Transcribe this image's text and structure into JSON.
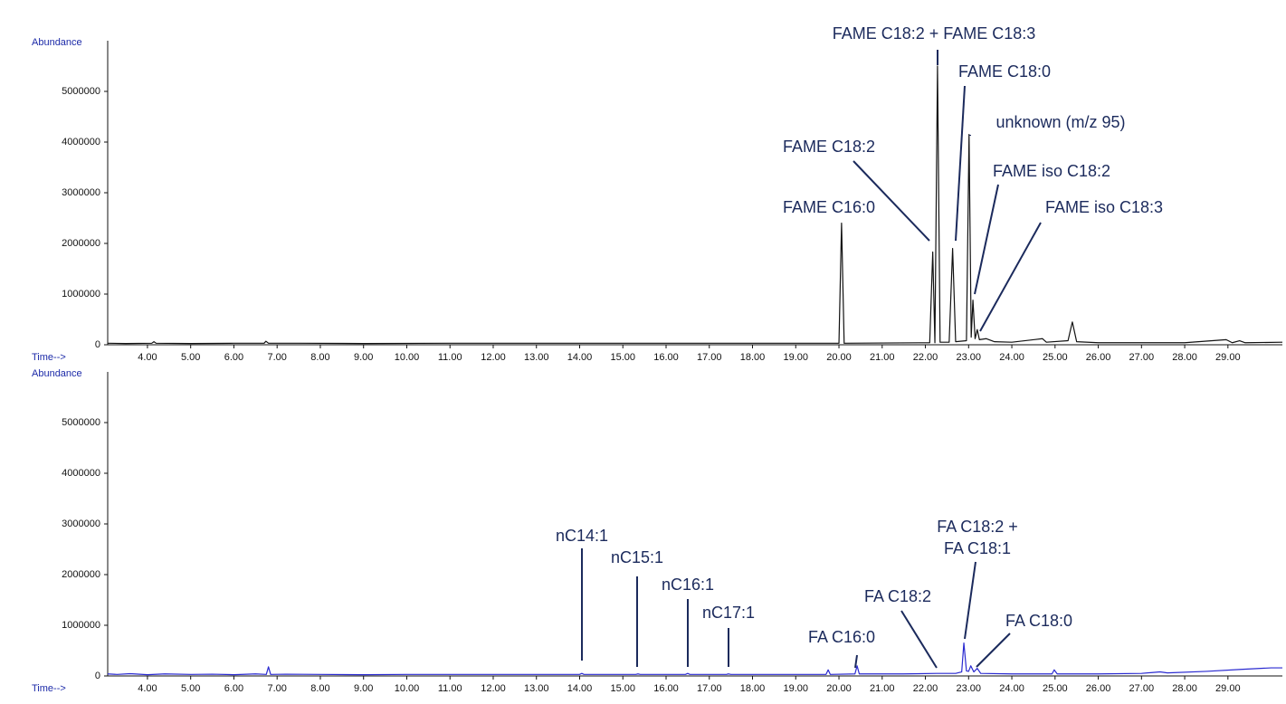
{
  "chart_data": [
    {
      "type": "line",
      "y_label": "Abundance",
      "x_label": "Time-->",
      "color": "#111111",
      "xlim": [
        3.08,
        30.26
      ],
      "ylim": [
        0,
        6000000
      ],
      "yticks": [
        0,
        1000000,
        2000000,
        3000000,
        4000000,
        5000000
      ],
      "xticks": [
        {
          "value": 4,
          "label": "4.00"
        },
        {
          "value": 5,
          "label": "5.00"
        },
        {
          "value": 6,
          "label": "6.00"
        },
        {
          "value": 7,
          "label": "7.00"
        },
        {
          "value": 8,
          "label": "8.00"
        },
        {
          "value": 9,
          "label": "9.00"
        },
        {
          "value": 10,
          "label": "10.00"
        },
        {
          "value": 11,
          "label": "11.00"
        },
        {
          "value": 12,
          "label": "12.00"
        },
        {
          "value": 13,
          "label": "13.00"
        },
        {
          "value": 14,
          "label": "14.00"
        },
        {
          "value": 15,
          "label": "15.00"
        },
        {
          "value": 16,
          "label": "16.00"
        },
        {
          "value": 17,
          "label": "17.00"
        },
        {
          "value": 18,
          "label": "18.00"
        },
        {
          "value": 19,
          "label": "19.00"
        },
        {
          "value": 20,
          "label": "20.00"
        },
        {
          "value": 21,
          "label": "21.00"
        },
        {
          "value": 22,
          "label": "22.00"
        },
        {
          "value": 23,
          "label": "23.00"
        },
        {
          "value": 24,
          "label": "24.00"
        },
        {
          "value": 25,
          "label": "25.00"
        },
        {
          "value": 26,
          "label": "26.00"
        },
        {
          "value": 27,
          "label": "27.00"
        },
        {
          "value": 28,
          "label": "28.00"
        },
        {
          "value": 29,
          "label": "29.00"
        }
      ],
      "x": [
        3.08,
        3.5,
        4.1,
        4.15,
        4.2,
        5.0,
        6.0,
        6.7,
        6.74,
        6.8,
        7.5,
        9,
        11,
        13,
        15,
        17,
        19,
        20.0,
        20.06,
        20.12,
        21,
        22.1,
        22.17,
        22.22,
        22.28,
        22.34,
        22.55,
        22.63,
        22.7,
        22.95,
        23.01,
        23.06,
        23.1,
        23.15,
        23.2,
        23.25,
        23.41,
        23.6,
        24.0,
        24.71,
        24.8,
        25.3,
        25.4,
        25.5,
        26,
        27,
        28,
        28.96,
        29.1,
        29.27,
        29.4,
        30.26
      ],
      "values": [
        30000,
        25000,
        30000,
        60000,
        30000,
        25000,
        30000,
        30000,
        70000,
        30000,
        30000,
        25000,
        30000,
        30000,
        30000,
        30000,
        30000,
        30000,
        2400000,
        30000,
        35000,
        40000,
        1830000,
        40000,
        5500000,
        50000,
        50000,
        1900000,
        60000,
        80000,
        4150000,
        150000,
        880000,
        120000,
        300000,
        100000,
        120000,
        60000,
        50000,
        120000,
        50000,
        80000,
        450000,
        60000,
        40000,
        40000,
        40000,
        100000,
        40000,
        80000,
        40000,
        50000
      ],
      "annotations": [
        "FAME C18:2 + FAME C18:3",
        "FAME C18:0",
        "FAME C18:2",
        "unknown (m/z 95)",
        "FAME iso C18:2",
        "FAME C16:0",
        "FAME iso C18:3"
      ]
    },
    {
      "type": "line",
      "y_label": "Abundance",
      "x_label": "Time-->",
      "color": "#2a2ad0",
      "xlim": [
        3.08,
        30.26
      ],
      "ylim": [
        0,
        6000000
      ],
      "yticks": [
        0,
        1000000,
        2000000,
        3000000,
        4000000,
        5000000
      ],
      "xticks": [
        {
          "value": 4,
          "label": "4.00"
        },
        {
          "value": 5,
          "label": "5.00"
        },
        {
          "value": 6,
          "label": "6.00"
        },
        {
          "value": 7,
          "label": "7.00"
        },
        {
          "value": 8,
          "label": "8.00"
        },
        {
          "value": 9,
          "label": "9.00"
        },
        {
          "value": 10,
          "label": "10.00"
        },
        {
          "value": 11,
          "label": "11.00"
        },
        {
          "value": 12,
          "label": "12.00"
        },
        {
          "value": 13,
          "label": "13.00"
        },
        {
          "value": 14,
          "label": "14.00"
        },
        {
          "value": 15,
          "label": "15.00"
        },
        {
          "value": 16,
          "label": "16.00"
        },
        {
          "value": 17,
          "label": "17.00"
        },
        {
          "value": 18,
          "label": "18.00"
        },
        {
          "value": 19,
          "label": "19.00"
        },
        {
          "value": 20,
          "label": "20.00"
        },
        {
          "value": 21,
          "label": "21.00"
        },
        {
          "value": 22,
          "label": "22.00"
        },
        {
          "value": 23,
          "label": "23.00"
        },
        {
          "value": 24,
          "label": "24.00"
        },
        {
          "value": 25,
          "label": "25.00"
        },
        {
          "value": 26,
          "label": "26.00"
        },
        {
          "value": 27,
          "label": "27.00"
        },
        {
          "value": 28,
          "label": "28.00"
        },
        {
          "value": 29,
          "label": "29.00"
        }
      ],
      "x": [
        3.08,
        3.3,
        3.6,
        4.0,
        4.4,
        5.0,
        5.5,
        6.0,
        6.5,
        6.75,
        6.8,
        6.85,
        7.2,
        8,
        9,
        10,
        11,
        12,
        13,
        14.0,
        14.05,
        14.1,
        15.3,
        15.35,
        15.4,
        16.45,
        16.5,
        16.55,
        17.4,
        17.44,
        17.5,
        19.7,
        19.75,
        19.8,
        20.37,
        20.42,
        20.47,
        21.5,
        22.26,
        22.7,
        22.84,
        22.89,
        22.95,
        23.0,
        23.05,
        23.12,
        23.2,
        23.28,
        24.0,
        24.93,
        24.98,
        25.05,
        26,
        27.0,
        27.43,
        27.6,
        28.5,
        29.3,
        30.0,
        30.26
      ],
      "values": [
        40000,
        30000,
        45000,
        25000,
        40000,
        30000,
        35000,
        25000,
        40000,
        30000,
        180000,
        30000,
        35000,
        30000,
        25000,
        30000,
        30000,
        30000,
        30000,
        30000,
        50000,
        30000,
        30000,
        40000,
        30000,
        30000,
        50000,
        30000,
        30000,
        40000,
        30000,
        30000,
        120000,
        30000,
        40000,
        200000,
        40000,
        40000,
        50000,
        50000,
        80000,
        650000,
        100000,
        90000,
        200000,
        80000,
        150000,
        50000,
        40000,
        40000,
        120000,
        40000,
        40000,
        50000,
        80000,
        60000,
        90000,
        130000,
        160000,
        160000
      ],
      "annotations": [
        "nC14:1",
        "nC15:1",
        "nC16:1",
        "nC17:1",
        "FA C16:0",
        "FA C18:2",
        "FA C18:2 +",
        "FA C18:1",
        "FA C18:0"
      ]
    }
  ]
}
